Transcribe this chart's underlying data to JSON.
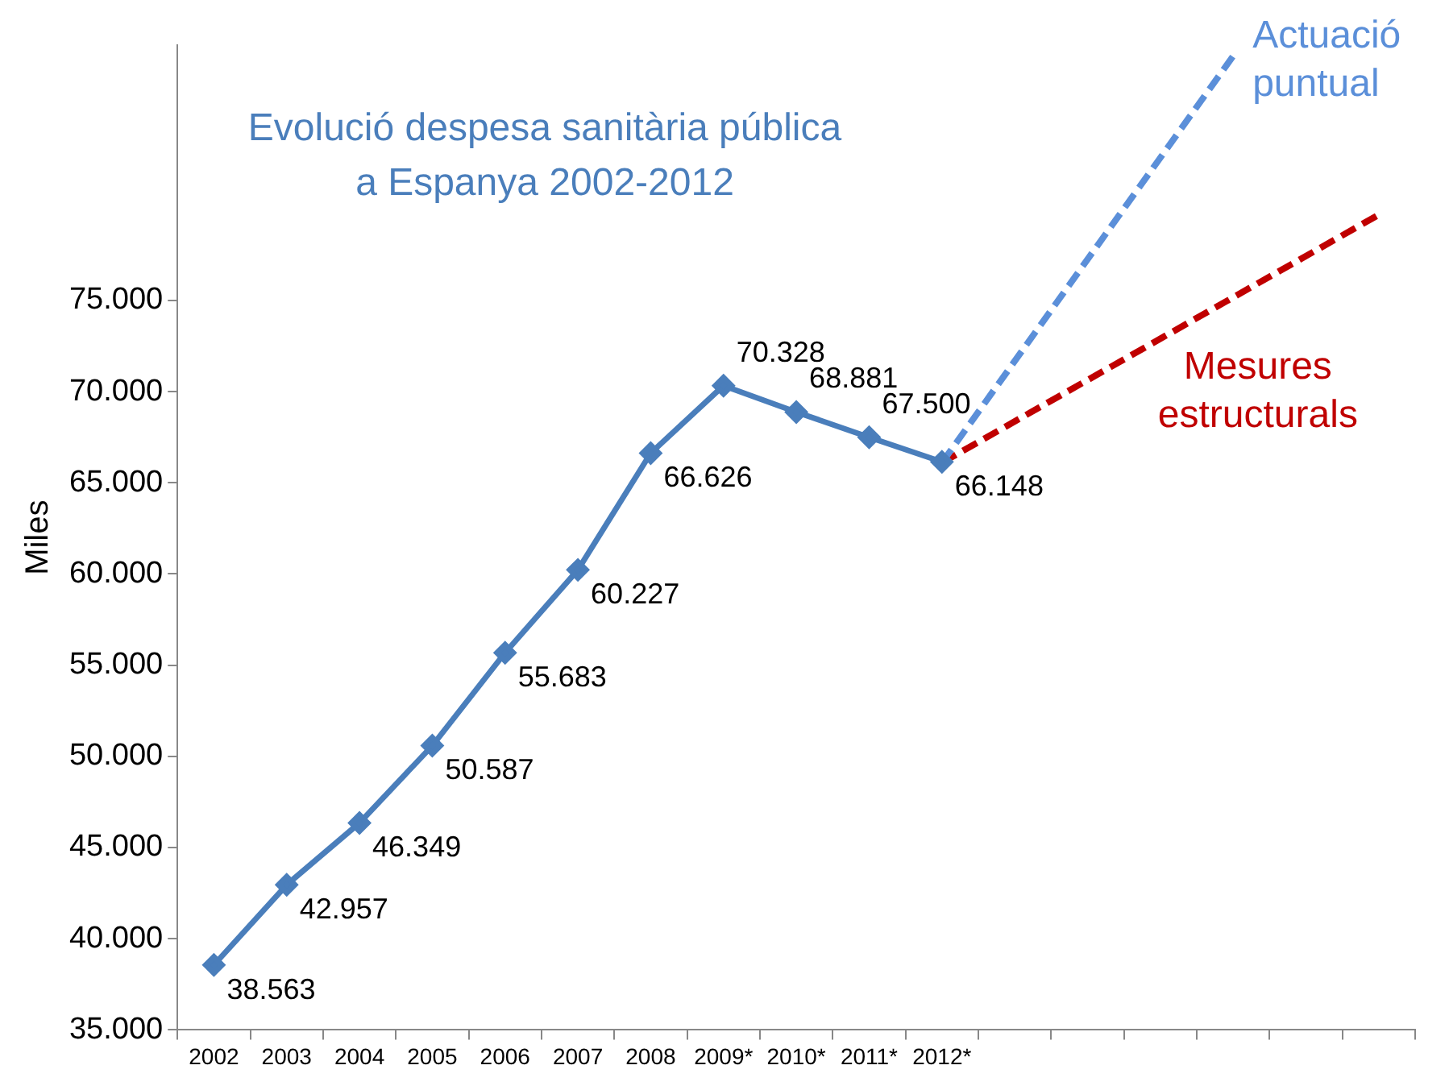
{
  "chart_data": {
    "type": "line",
    "title": "Evolució despesa sanitària pública a Espanya 2002-2012",
    "ylabel": "Miles",
    "categories": [
      "2002",
      "2003",
      "2004",
      "2005",
      "2006",
      "2007",
      "2008",
      "2009*",
      "2010*",
      "2011*",
      "2012*",
      null,
      null,
      null,
      null,
      null,
      null
    ],
    "series": [
      {
        "color": "#4a7ebb",
        "marker": "diamond",
        "line_style": "solid",
        "values": [
          38563,
          42957,
          46349,
          50587,
          55683,
          60227,
          66626,
          70328,
          68881,
          67500,
          66148,
          null,
          null,
          null,
          null,
          null,
          null
        ],
        "value_labels": [
          "38.563",
          "42.957",
          "46.349",
          "50.587",
          "55.683",
          "60.227",
          "66.626",
          "70.328",
          "68.881",
          "67.500",
          "66.148",
          null,
          null,
          null,
          null,
          null,
          null
        ]
      },
      {
        "name": "Actuació puntual",
        "color": "#5b8fd9",
        "marker": "none",
        "line_style": "dashed",
        "values": [
          null,
          null,
          null,
          null,
          null,
          null,
          null,
          null,
          null,
          null,
          66100,
          null,
          null,
          null,
          88400,
          null,
          null
        ]
      },
      {
        "name": "Mesures estructurals",
        "color": "#c00000",
        "marker": "none",
        "line_style": "dashed",
        "values": [
          null,
          null,
          null,
          null,
          null,
          null,
          null,
          null,
          null,
          null,
          66100,
          null,
          null,
          null,
          null,
          null,
          79700
        ]
      }
    ],
    "ylim": [
      35000,
      89000
    ],
    "yticks": [
      {
        "value": 35000,
        "label": "35.000"
      },
      {
        "value": 40000,
        "label": "40.000"
      },
      {
        "value": 45000,
        "label": "45.000"
      },
      {
        "value": 50000,
        "label": "50.000"
      },
      {
        "value": 55000,
        "label": "55.000"
      },
      {
        "value": 60000,
        "label": "60.000"
      },
      {
        "value": 65000,
        "label": "65.000"
      },
      {
        "value": 70000,
        "label": "70.000"
      },
      {
        "value": 75000,
        "label": "75.000"
      }
    ],
    "grid": false,
    "legend": false
  }
}
